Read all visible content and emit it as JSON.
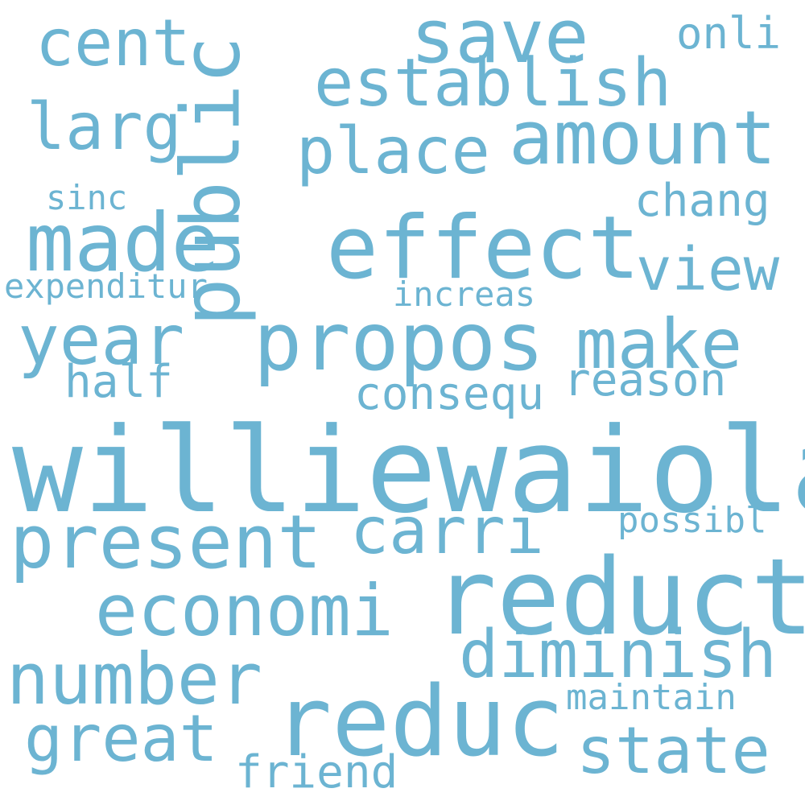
{
  "word_color": "#6cb4d2",
  "background_color": "#ffffff",
  "words": [
    {
      "text": "williewaiola",
      "orientation": "horizontal"
    },
    {
      "text": "reduct",
      "orientation": "horizontal"
    },
    {
      "text": "reduc",
      "orientation": "horizontal"
    },
    {
      "text": "effect",
      "orientation": "horizontal"
    },
    {
      "text": "propos",
      "orientation": "horizontal"
    },
    {
      "text": "made",
      "orientation": "horizontal"
    },
    {
      "text": "present",
      "orientation": "horizontal"
    },
    {
      "text": "public",
      "orientation": "vertical"
    },
    {
      "text": "amount",
      "orientation": "horizontal"
    },
    {
      "text": "save",
      "orientation": "horizontal"
    },
    {
      "text": "economi",
      "orientation": "horizontal"
    },
    {
      "text": "diminish",
      "orientation": "horizontal"
    },
    {
      "text": "number",
      "orientation": "horizontal"
    },
    {
      "text": "establish",
      "orientation": "horizontal"
    },
    {
      "text": "make",
      "orientation": "horizontal"
    },
    {
      "text": "year",
      "orientation": "horizontal"
    },
    {
      "text": "cent",
      "orientation": "horizontal"
    },
    {
      "text": "place",
      "orientation": "horizontal"
    },
    {
      "text": "state",
      "orientation": "horizontal"
    },
    {
      "text": "great",
      "orientation": "horizontal"
    },
    {
      "text": "carri",
      "orientation": "horizontal"
    },
    {
      "text": "larg",
      "orientation": "horizontal"
    },
    {
      "text": "view",
      "orientation": "horizontal"
    },
    {
      "text": "reason",
      "orientation": "horizontal"
    },
    {
      "text": "consequ",
      "orientation": "horizontal"
    },
    {
      "text": "friend",
      "orientation": "horizontal"
    },
    {
      "text": "half",
      "orientation": "horizontal"
    },
    {
      "text": "chang",
      "orientation": "horizontal"
    },
    {
      "text": "maintain",
      "orientation": "horizontal"
    },
    {
      "text": "possibl",
      "orientation": "horizontal"
    },
    {
      "text": "onli",
      "orientation": "horizontal"
    },
    {
      "text": "expenditur",
      "orientation": "horizontal"
    },
    {
      "text": "increas",
      "orientation": "horizontal"
    },
    {
      "text": "sinc",
      "orientation": "horizontal"
    }
  ]
}
